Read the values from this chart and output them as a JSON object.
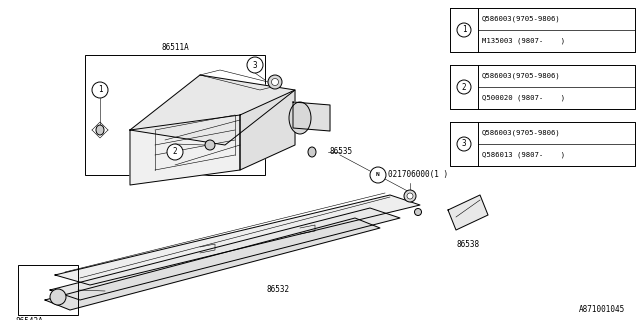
{
  "bg_color": "#ffffff",
  "line_color": "#000000",
  "text_color": "#000000",
  "fig_width": 6.4,
  "fig_height": 3.2,
  "dpi": 100,
  "legend": [
    {
      "num": "1",
      "l1": "Q586003(9705-9806)",
      "l2": "M135003 (9807-    )"
    },
    {
      "num": "2",
      "l1": "Q586003(9705-9806)",
      "l2": "Q500020 (9807-    )"
    },
    {
      "num": "3",
      "l1": "Q586003(9705-9806)",
      "l2": "Q586013 (9807-    )"
    }
  ],
  "footer_text": "A871001045"
}
